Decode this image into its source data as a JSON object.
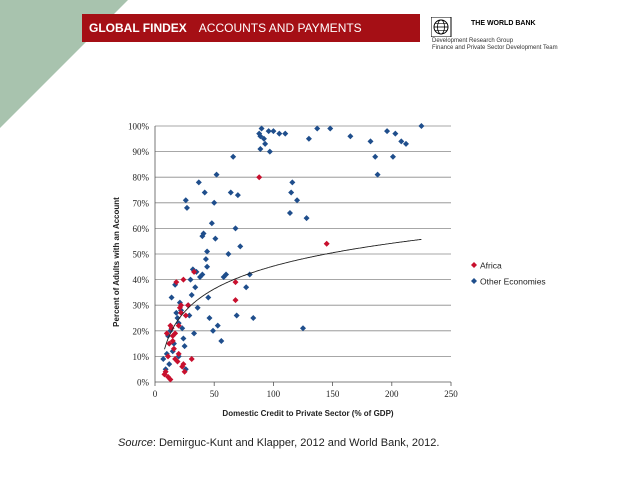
{
  "header": {
    "title_bold": "GLOBAL FINDEX",
    "title_rest": "ACCOUNTS AND PAYMENTS",
    "bar_color": "#a50f15"
  },
  "logo": {
    "name": "THE WORLD BANK",
    "sub1": "Development Research Group",
    "sub2": "Finance and Private Sector Development Team"
  },
  "source": {
    "label": "Source",
    "text": ": Demirguc-Kunt and Klapper, 2012 and World Bank, 2012."
  },
  "chart_data": {
    "type": "scatter",
    "xlabel": "Domestic Credit to Private Sector (% of GDP)",
    "ylabel": "Percent of Adults with an Account",
    "xlim": [
      0,
      250
    ],
    "ylim": [
      0,
      100
    ],
    "x_ticks": [
      0,
      50,
      100,
      150,
      200,
      250
    ],
    "y_ticks": [
      "0%",
      "10%",
      "20%",
      "30%",
      "40%",
      "50%",
      "60%",
      "70%",
      "80%",
      "90%",
      "100%"
    ],
    "grid": "horizontal",
    "legend_position": "right",
    "trendline": "logarithmic",
    "series": [
      {
        "name": "Africa",
        "color": "#c8102e",
        "points": [
          [
            8,
            3
          ],
          [
            9,
            4
          ],
          [
            10,
            19
          ],
          [
            11,
            10
          ],
          [
            11,
            2
          ],
          [
            12,
            15
          ],
          [
            13,
            1
          ],
          [
            13,
            22
          ],
          [
            14,
            21
          ],
          [
            15,
            18
          ],
          [
            15,
            16
          ],
          [
            16,
            13
          ],
          [
            17,
            9
          ],
          [
            17,
            19
          ],
          [
            18,
            39
          ],
          [
            19,
            8
          ],
          [
            20,
            22
          ],
          [
            20,
            11
          ],
          [
            21,
            29
          ],
          [
            22,
            30
          ],
          [
            22,
            27
          ],
          [
            23,
            6
          ],
          [
            24,
            7
          ],
          [
            24,
            40
          ],
          [
            25,
            4
          ],
          [
            26,
            26
          ],
          [
            28,
            30
          ],
          [
            31,
            9
          ],
          [
            33,
            43
          ],
          [
            68,
            39
          ],
          [
            68,
            32
          ],
          [
            88,
            80
          ],
          [
            145,
            54
          ]
        ]
      },
      {
        "name": "Other Economies",
        "color": "#1f4e8c",
        "points": [
          [
            7,
            9
          ],
          [
            9,
            5
          ],
          [
            10,
            11
          ],
          [
            11,
            18
          ],
          [
            12,
            7
          ],
          [
            13,
            20
          ],
          [
            14,
            33
          ],
          [
            15,
            12
          ],
          [
            16,
            15
          ],
          [
            17,
            38
          ],
          [
            18,
            27
          ],
          [
            19,
            25
          ],
          [
            20,
            10
          ],
          [
            20,
            23
          ],
          [
            21,
            31
          ],
          [
            22,
            28
          ],
          [
            23,
            21
          ],
          [
            24,
            17
          ],
          [
            25,
            14
          ],
          [
            26,
            5
          ],
          [
            26,
            71
          ],
          [
            27,
            68
          ],
          [
            28,
            30
          ],
          [
            29,
            26
          ],
          [
            30,
            40
          ],
          [
            31,
            34
          ],
          [
            32,
            44
          ],
          [
            33,
            19
          ],
          [
            34,
            37
          ],
          [
            35,
            43
          ],
          [
            36,
            29
          ],
          [
            37,
            78
          ],
          [
            38,
            41
          ],
          [
            40,
            42
          ],
          [
            40,
            57
          ],
          [
            41,
            58
          ],
          [
            42,
            74
          ],
          [
            43,
            48
          ],
          [
            44,
            45
          ],
          [
            44,
            51
          ],
          [
            45,
            33
          ],
          [
            46,
            25
          ],
          [
            48,
            62
          ],
          [
            49,
            20
          ],
          [
            50,
            70
          ],
          [
            51,
            56
          ],
          [
            52,
            81
          ],
          [
            53,
            22
          ],
          [
            56,
            16
          ],
          [
            58,
            41
          ],
          [
            60,
            42
          ],
          [
            62,
            50
          ],
          [
            64,
            74
          ],
          [
            66,
            88
          ],
          [
            68,
            60
          ],
          [
            69,
            26
          ],
          [
            70,
            73
          ],
          [
            72,
            53
          ],
          [
            77,
            37
          ],
          [
            80,
            42
          ],
          [
            83,
            25
          ],
          [
            88,
            97
          ],
          [
            89,
            96
          ],
          [
            89,
            91
          ],
          [
            90,
            99
          ],
          [
            92,
            95
          ],
          [
            93,
            93
          ],
          [
            96,
            98
          ],
          [
            97,
            90
          ],
          [
            100,
            98
          ],
          [
            105,
            97
          ],
          [
            110,
            97
          ],
          [
            114,
            66
          ],
          [
            115,
            74
          ],
          [
            116,
            78
          ],
          [
            120,
            71
          ],
          [
            125,
            21
          ],
          [
            128,
            64
          ],
          [
            130,
            95
          ],
          [
            137,
            99
          ],
          [
            148,
            99
          ],
          [
            165,
            96
          ],
          [
            182,
            94
          ],
          [
            186,
            88
          ],
          [
            188,
            81
          ],
          [
            196,
            98
          ],
          [
            201,
            88
          ],
          [
            203,
            97
          ],
          [
            208,
            94
          ],
          [
            212,
            93
          ],
          [
            225,
            100
          ]
        ]
      }
    ]
  }
}
